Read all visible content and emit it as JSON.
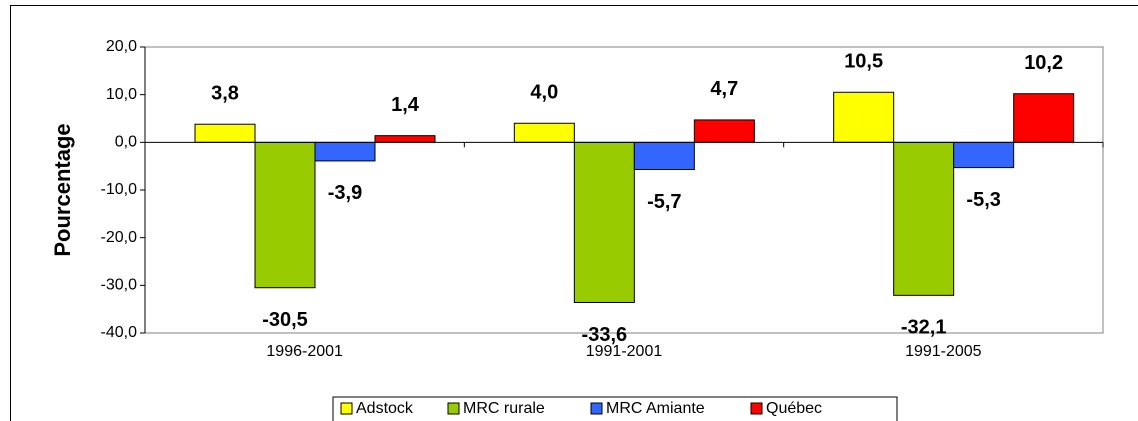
{
  "chart_data": {
    "type": "bar",
    "y_label": "Pourcentage",
    "categories": [
      "1996-2001",
      "1991-2001",
      "1991-2005"
    ],
    "series": [
      {
        "name": "Adstock",
        "color": "#ffff00",
        "values": [
          3.8,
          4.0,
          10.5
        ],
        "value_labels": [
          "3,8",
          "4,0",
          "10,5"
        ]
      },
      {
        "name": "MRC rurale",
        "color": "#99cc00",
        "values": [
          -30.5,
          -33.6,
          -32.1
        ],
        "value_labels": [
          "-30,5",
          "-33,6",
          "-32,1"
        ]
      },
      {
        "name": "MRC Amiante",
        "color": "#3366ff",
        "values": [
          -3.9,
          -5.7,
          -5.3
        ],
        "value_labels": [
          "-3,9",
          "-5,7",
          "-5,3"
        ]
      },
      {
        "name": "Québec",
        "color": "#ff0000",
        "values": [
          1.4,
          4.7,
          10.2
        ],
        "value_labels": [
          "1,4",
          "4,7",
          "10,2"
        ]
      }
    ],
    "ylim": [
      -40,
      20
    ],
    "yticks": [
      {
        "value": -40,
        "label": "-40,0"
      },
      {
        "value": -30,
        "label": "-30,0"
      },
      {
        "value": -20,
        "label": "-20,0"
      },
      {
        "value": -10,
        "label": "-10,0"
      },
      {
        "value": 0,
        "label": "0,0"
      },
      {
        "value": 10,
        "label": "10,0"
      },
      {
        "value": 20,
        "label": "20,0"
      }
    ],
    "legend": "bottom"
  }
}
